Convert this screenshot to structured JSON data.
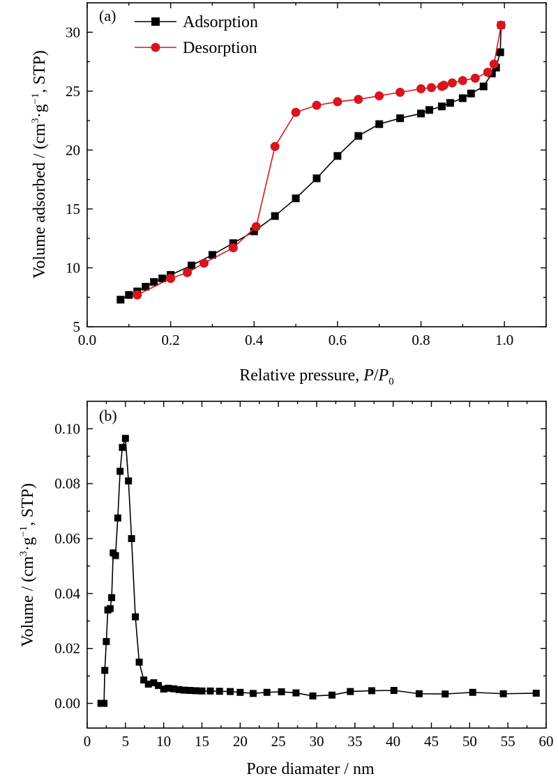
{
  "chart_data": [
    {
      "type": "line",
      "panel_label": "(a)",
      "xlabel_prefix": "Relative pressure, ",
      "xlabel_P": "P",
      "xlabel_slash": "/",
      "xlabel_P0": "P",
      "xlabel_P0_sub": "0",
      "ylabel_main": "Volume adsorbed / (cm",
      "ylabel_sup1": "3",
      "ylabel_mid": "·g",
      "ylabel_sup2": "−1",
      "ylabel_end": ", STP)",
      "xlim": [
        0.0,
        1.1
      ],
      "ylim": [
        5,
        32.5
      ],
      "xticks": [
        "0.0",
        "0.2",
        "0.4",
        "0.6",
        "0.8",
        "1.0"
      ],
      "yticks": [
        "5",
        "10",
        "15",
        "20",
        "25",
        "30"
      ],
      "legend_position": "top-left",
      "series": [
        {
          "name": "Adsorption",
          "color": "#000000",
          "marker": "square",
          "points": [
            [
              0.08,
              7.3
            ],
            [
              0.1,
              7.7
            ],
            [
              0.12,
              8.0
            ],
            [
              0.14,
              8.4
            ],
            [
              0.16,
              8.8
            ],
            [
              0.18,
              9.1
            ],
            [
              0.2,
              9.4
            ],
            [
              0.25,
              10.2
            ],
            [
              0.3,
              11.1
            ],
            [
              0.35,
              12.1
            ],
            [
              0.4,
              13.1
            ],
            [
              0.45,
              14.4
            ],
            [
              0.5,
              15.9
            ],
            [
              0.55,
              17.6
            ],
            [
              0.6,
              19.5
            ],
            [
              0.65,
              21.2
            ],
            [
              0.7,
              22.2
            ],
            [
              0.75,
              22.7
            ],
            [
              0.8,
              23.1
            ],
            [
              0.82,
              23.4
            ],
            [
              0.85,
              23.7
            ],
            [
              0.87,
              24.0
            ],
            [
              0.9,
              24.4
            ],
            [
              0.92,
              24.8
            ],
            [
              0.95,
              25.4
            ],
            [
              0.97,
              26.5
            ],
            [
              0.98,
              27.0
            ],
            [
              0.99,
              28.3
            ],
            [
              0.992,
              30.6
            ]
          ]
        },
        {
          "name": "Desorption",
          "color": "#d8151d",
          "marker": "circle",
          "points": [
            [
              0.992,
              30.6
            ],
            [
              0.975,
              27.3
            ],
            [
              0.96,
              26.6
            ],
            [
              0.93,
              26.1
            ],
            [
              0.9,
              25.9
            ],
            [
              0.875,
              25.7
            ],
            [
              0.855,
              25.5
            ],
            [
              0.85,
              25.4
            ],
            [
              0.825,
              25.3
            ],
            [
              0.8,
              25.2
            ],
            [
              0.75,
              24.9
            ],
            [
              0.7,
              24.6
            ],
            [
              0.65,
              24.3
            ],
            [
              0.6,
              24.1
            ],
            [
              0.55,
              23.8
            ],
            [
              0.5,
              23.2
            ],
            [
              0.45,
              20.3
            ],
            [
              0.405,
              13.5
            ],
            [
              0.35,
              11.7
            ],
            [
              0.28,
              10.4
            ],
            [
              0.24,
              9.6
            ],
            [
              0.2,
              9.1
            ],
            [
              0.12,
              7.7
            ]
          ]
        }
      ]
    },
    {
      "type": "line",
      "panel_label": "(b)",
      "xlabel": "Pore diamater / nm",
      "ylabel_main": "Volume / (cm",
      "ylabel_sup1": "3",
      "ylabel_mid": "·g",
      "ylabel_sup2": "−1",
      "ylabel_end": ", STP)",
      "xlim": [
        0,
        60
      ],
      "ylim": [
        -0.009,
        0.11
      ],
      "xticks": [
        "0",
        "5",
        "10",
        "15",
        "20",
        "25",
        "30",
        "35",
        "40",
        "45",
        "50",
        "55",
        "60"
      ],
      "yticks": [
        "0.00",
        "0.02",
        "0.04",
        "0.06",
        "0.08",
        "0.10"
      ],
      "series": [
        {
          "color": "#000000",
          "marker": "square",
          "points": [
            [
              1.8,
              0.0
            ],
            [
              2.2,
              0.0
            ],
            [
              2.3,
              0.012
            ],
            [
              2.5,
              0.0225
            ],
            [
              2.7,
              0.034
            ],
            [
              3.0,
              0.0345
            ],
            [
              3.2,
              0.0385
            ],
            [
              3.4,
              0.0548
            ],
            [
              3.7,
              0.0538
            ],
            [
              4.0,
              0.0675
            ],
            [
              4.3,
              0.0845
            ],
            [
              4.6,
              0.0932
            ],
            [
              5.0,
              0.0965
            ],
            [
              5.4,
              0.081
            ],
            [
              5.8,
              0.06
            ],
            [
              6.3,
              0.0315
            ],
            [
              6.8,
              0.015
            ],
            [
              7.4,
              0.0085
            ],
            [
              8.0,
              0.007
            ],
            [
              8.7,
              0.0075
            ],
            [
              9.3,
              0.0065
            ],
            [
              10.0,
              0.0052
            ],
            [
              10.6,
              0.0055
            ],
            [
              11.3,
              0.0053
            ],
            [
              12.0,
              0.005
            ],
            [
              12.7,
              0.0048
            ],
            [
              13.4,
              0.0047
            ],
            [
              14.2,
              0.0046
            ],
            [
              15.0,
              0.0045
            ],
            [
              16.1,
              0.0045
            ],
            [
              17.3,
              0.0044
            ],
            [
              18.7,
              0.0043
            ],
            [
              20.0,
              0.004
            ],
            [
              21.7,
              0.0036
            ],
            [
              23.5,
              0.004
            ],
            [
              25.4,
              0.0042
            ],
            [
              27.3,
              0.0038
            ],
            [
              29.5,
              0.0027
            ],
            [
              32.0,
              0.003
            ],
            [
              34.4,
              0.0043
            ],
            [
              37.2,
              0.0046
            ],
            [
              40.1,
              0.0047
            ],
            [
              43.4,
              0.0035
            ],
            [
              46.8,
              0.0034
            ],
            [
              50.4,
              0.004
            ],
            [
              54.4,
              0.0035
            ],
            [
              58.7,
              0.0037
            ]
          ]
        }
      ]
    }
  ]
}
